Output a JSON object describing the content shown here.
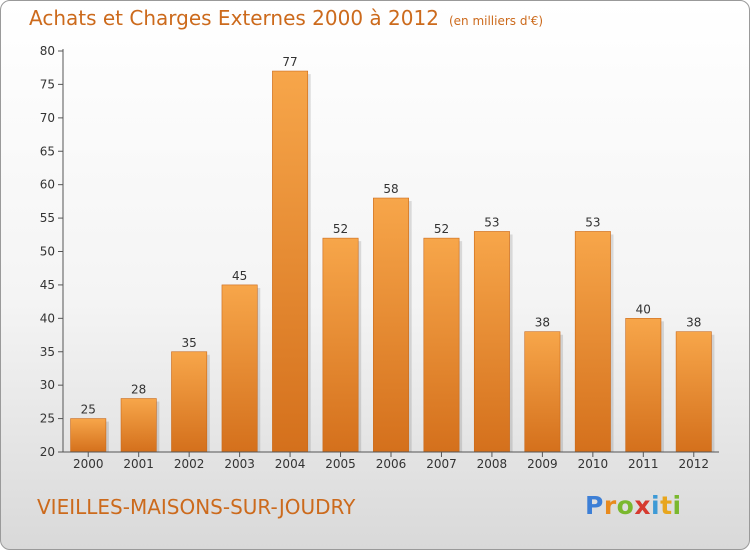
{
  "header": {
    "title": "Achats et Charges Externes 2000 à 2012",
    "subtitle": "(en milliers d'€)"
  },
  "footer": {
    "commune": "VIEILLES-MAISONS-SUR-JOUDRY",
    "brand_letters": [
      "P",
      "r",
      "o",
      "x",
      "i",
      "t",
      "i"
    ],
    "brand_colors": [
      "#3d7fd6",
      "#e88a1d",
      "#7ab82e",
      "#d63a2f",
      "#3d9ad6",
      "#e8a61d",
      "#7ab82e"
    ]
  },
  "chart_data": {
    "type": "bar",
    "title": "Achats et Charges Externes 2000 à 2012",
    "subtitle": "(en milliers d'€)",
    "categories": [
      "2000",
      "2001",
      "2002",
      "2003",
      "2004",
      "2005",
      "2006",
      "2007",
      "2008",
      "2009",
      "2010",
      "2011",
      "2012"
    ],
    "values": [
      25,
      28,
      35,
      45,
      77,
      52,
      58,
      52,
      53,
      38,
      53,
      40,
      38
    ],
    "ylim": [
      20,
      80
    ],
    "yticks": [
      20,
      25,
      30,
      35,
      40,
      45,
      50,
      55,
      60,
      65,
      70,
      75,
      80
    ],
    "grid": false,
    "legend": "none",
    "bar_color": "#f0922e",
    "axis_color": "#555555"
  }
}
